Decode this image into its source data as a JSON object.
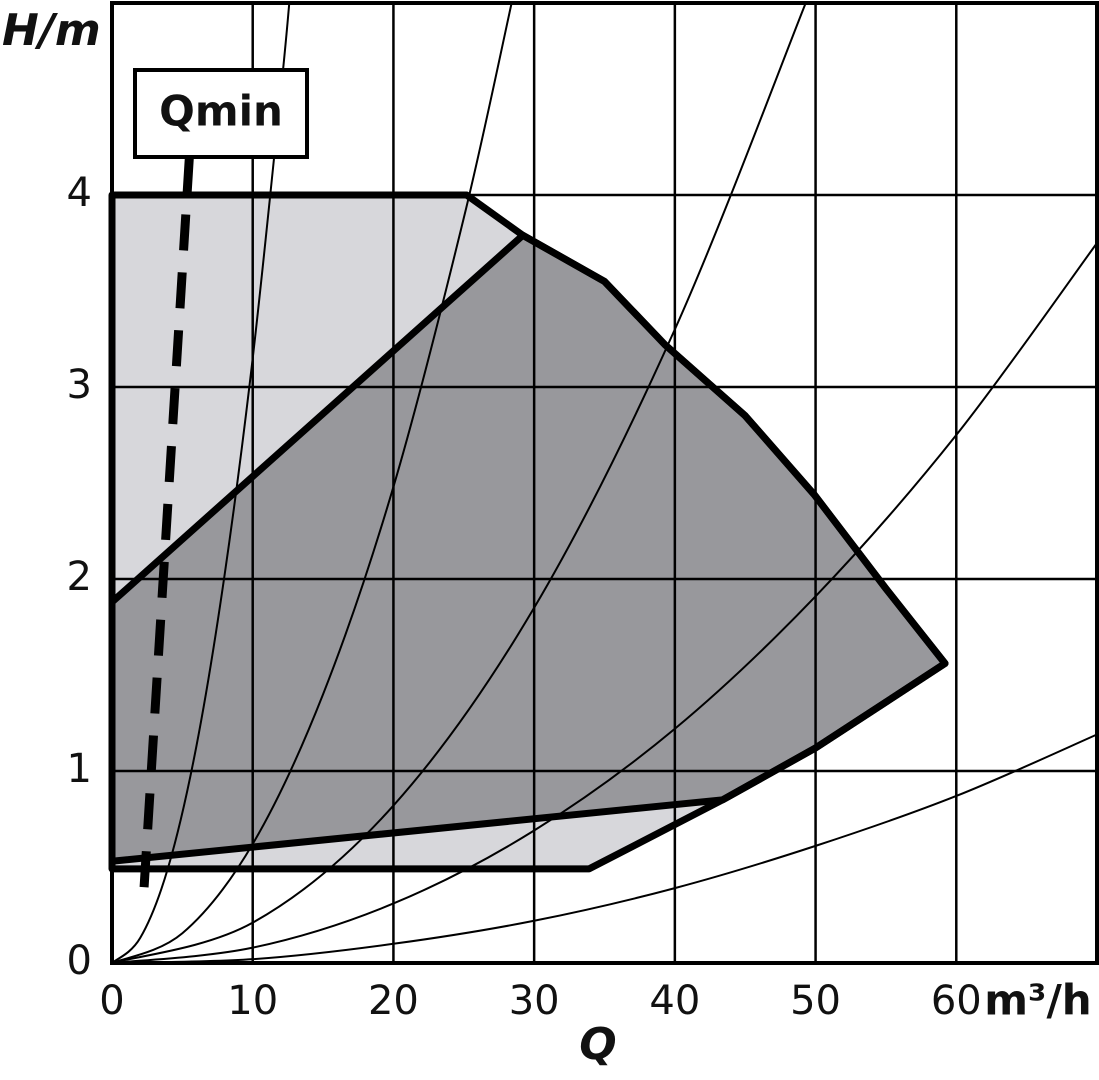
{
  "chart_data": {
    "type": "line",
    "xlabel": "Q",
    "ylabel": "H/m",
    "x_unit": "m³/h",
    "annotation": "Qmin",
    "xlim": [
      0,
      70
    ],
    "ylim": [
      0,
      5
    ],
    "xticks": [
      0,
      10,
      20,
      30,
      40,
      50,
      60
    ],
    "yticks": [
      0,
      1,
      2,
      3,
      4
    ],
    "grid": true,
    "regions": [
      {
        "color": "#d7d7db",
        "x": [
          0,
          25.2,
          29.2,
          35,
          39.3,
          45,
          49.9,
          55,
          59.2,
          50,
          43.4,
          33.9,
          0
        ],
        "values": [
          4,
          4,
          3.79,
          3.55,
          3.22,
          2.85,
          2.44,
          1.95,
          1.56,
          1.12,
          0.85,
          0.49,
          0.49
        ]
      },
      {
        "color": "#98989c",
        "x": [
          0,
          29.2,
          35,
          39.3,
          45,
          49.9,
          55,
          59.2,
          50,
          43.4,
          0
        ],
        "values": [
          1.88,
          3.79,
          3.55,
          3.22,
          2.85,
          2.44,
          1.95,
          1.56,
          1.12,
          0.85,
          0.53
        ]
      }
    ],
    "series": [
      {
        "color": "#000000",
        "x": [
          0,
          2,
          4,
          6,
          8,
          10,
          12,
          12.6
        ],
        "values": [
          0,
          0.13,
          0.5,
          1.13,
          2.02,
          3.15,
          4.54,
          5
        ]
      },
      {
        "color": "#000000",
        "x": [
          0,
          5,
          10,
          15,
          20,
          25,
          28.4
        ],
        "values": [
          0,
          0.155,
          0.62,
          1.4,
          2.48,
          3.88,
          5
        ]
      },
      {
        "color": "#000000",
        "x": [
          0,
          10,
          20,
          30,
          40,
          49.3
        ],
        "values": [
          0,
          0.21,
          0.82,
          1.85,
          3.3,
          5
        ]
      },
      {
        "color": "#000000",
        "x": [
          0,
          10,
          20,
          30,
          40,
          50,
          60,
          70
        ],
        "values": [
          0,
          0.08,
          0.31,
          0.69,
          1.22,
          1.91,
          2.75,
          3.75
        ]
      },
      {
        "color": "#000000",
        "x": [
          0,
          10,
          20,
          30,
          40,
          50,
          60,
          70
        ],
        "values": [
          0,
          0.02,
          0.1,
          0.22,
          0.39,
          0.61,
          0.87,
          1.19
        ]
      }
    ],
    "qmin_line": {
      "color": "#000000",
      "x": [
        5.5,
        2.2
      ],
      "values": [
        4.2,
        0.3
      ]
    }
  }
}
